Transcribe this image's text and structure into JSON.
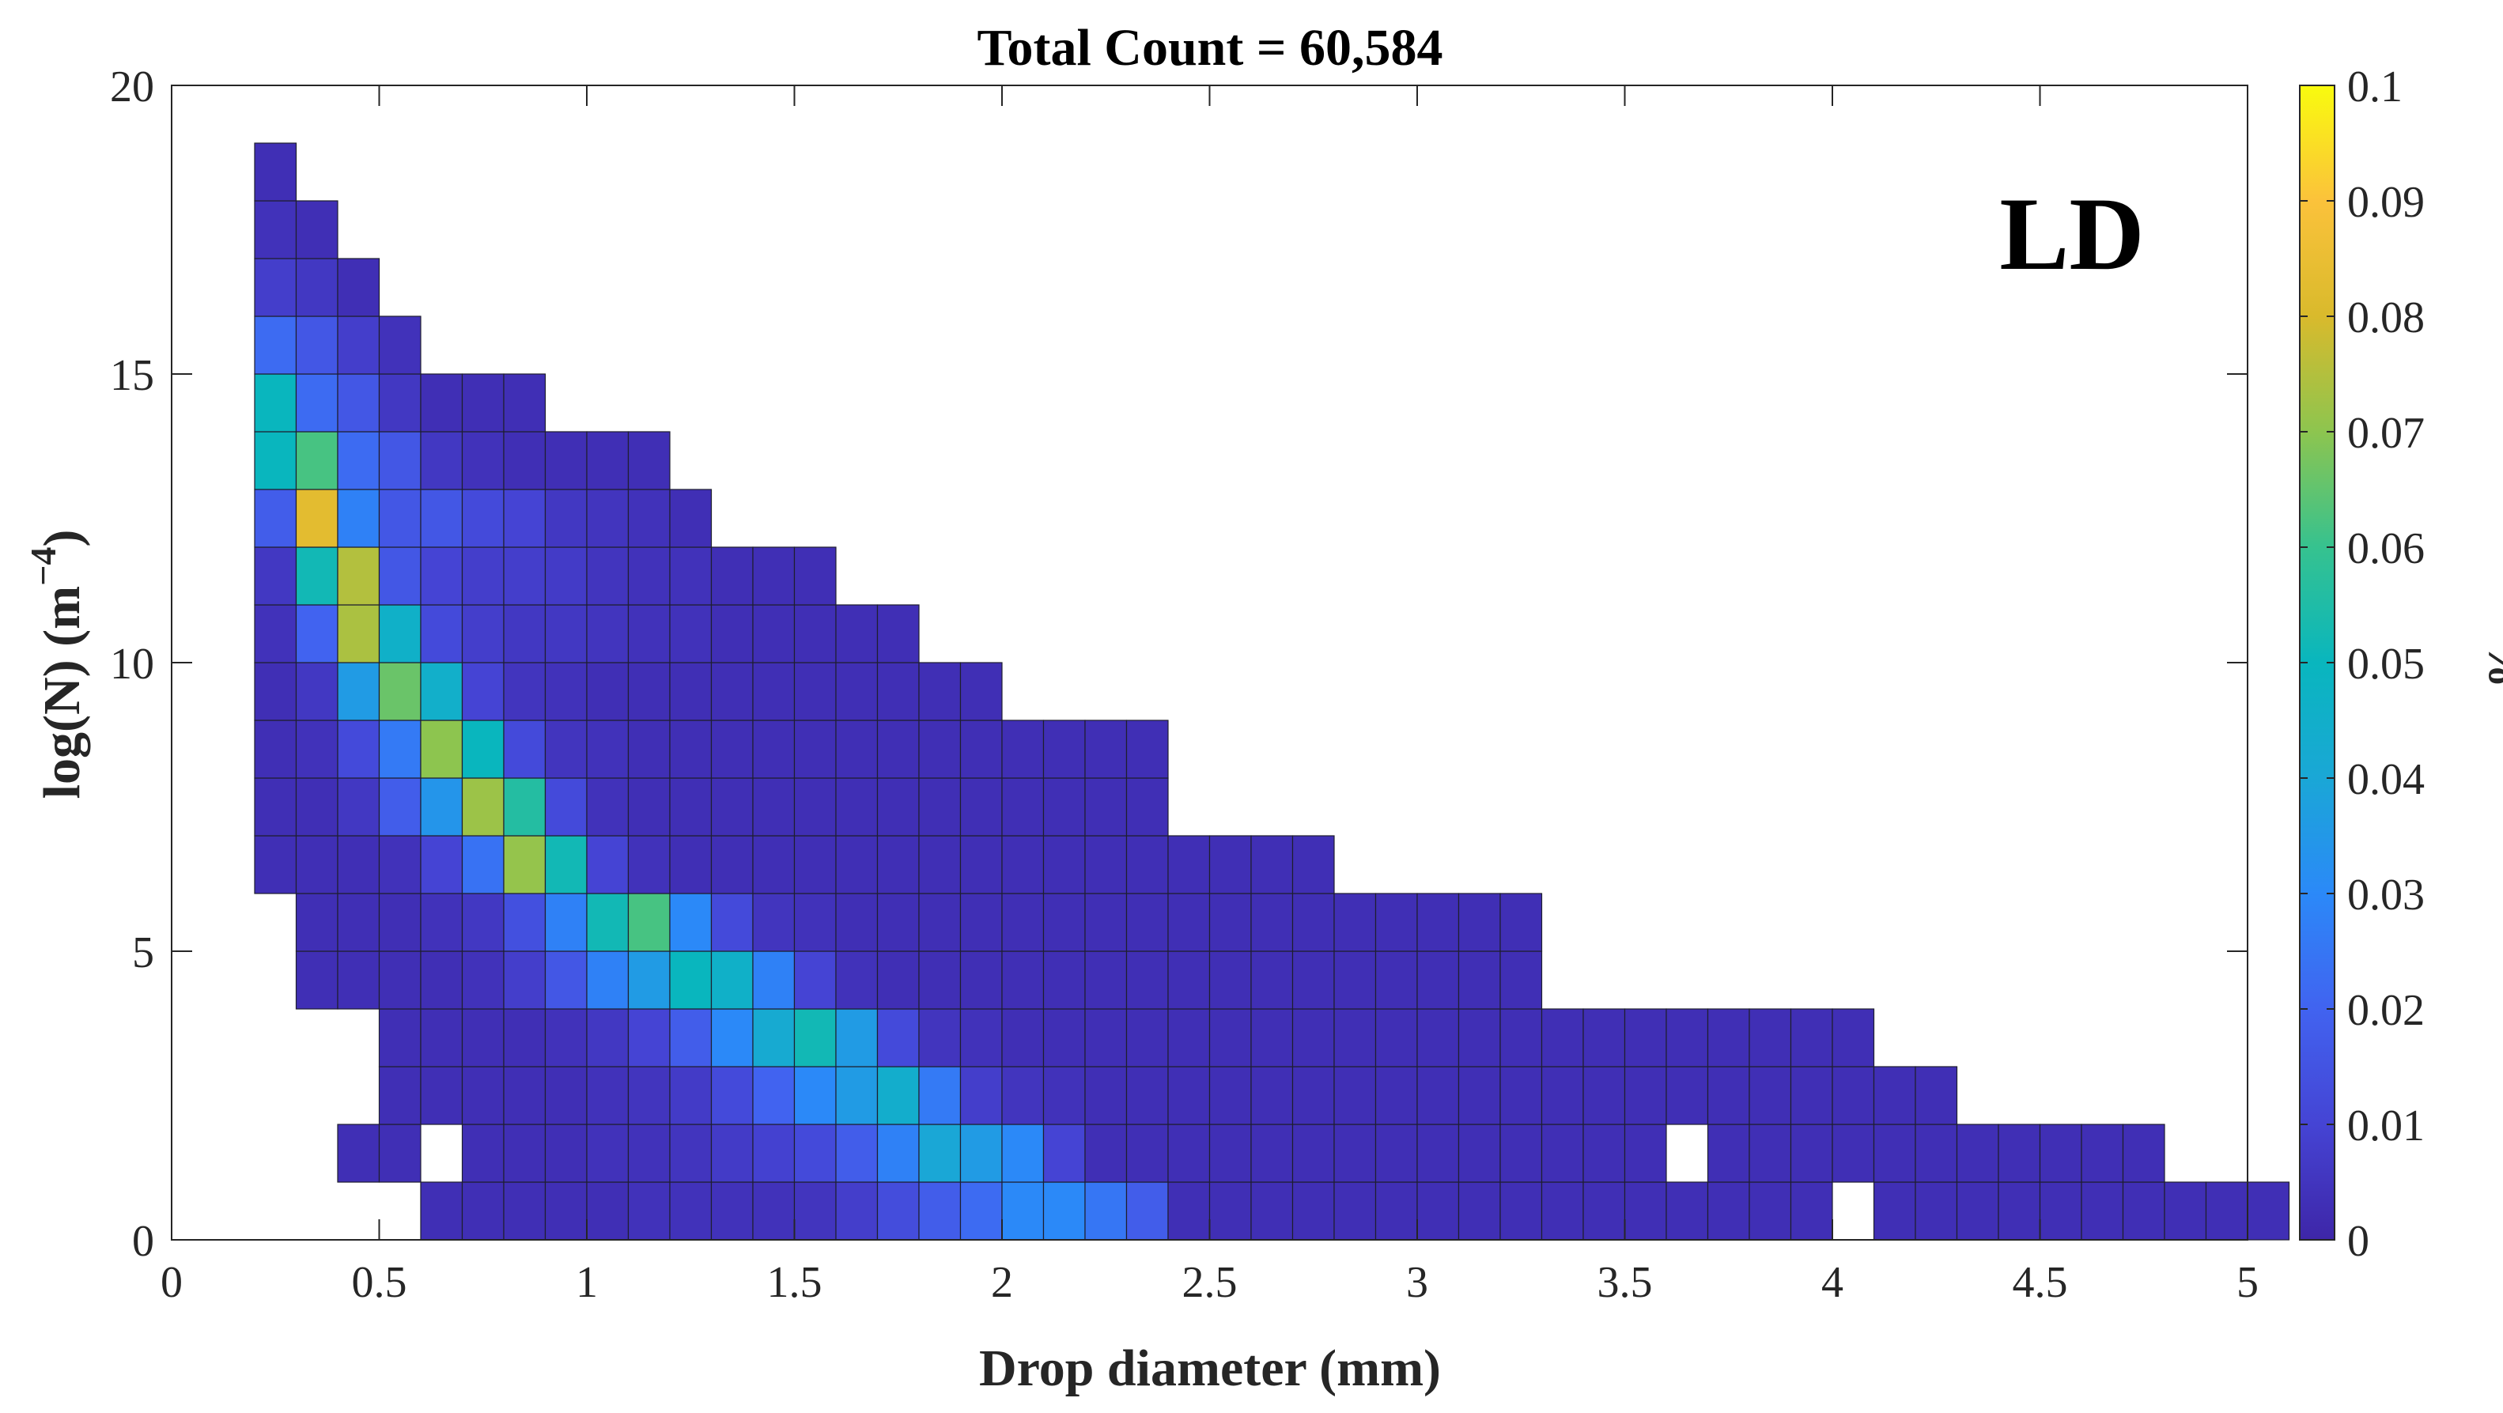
{
  "chart_data": {
    "type": "heatmap",
    "title": "Total Count = 60,584",
    "xlabel": "Drop diameter (mm)",
    "ylabel": "log(N) (m",
    "ylabel_exponent": "−4",
    "ylabel_close": ")",
    "annotation": "LD",
    "xlim": [
      0,
      5
    ],
    "ylim": [
      0,
      20
    ],
    "x_ticks": [
      0,
      0.5,
      1,
      1.5,
      2,
      2.5,
      3,
      3.5,
      4,
      4.5,
      5
    ],
    "y_ticks": [
      0,
      5,
      10,
      15,
      20
    ],
    "grid": false,
    "colorbar": {
      "label": "%",
      "range": [
        0,
        0.1
      ],
      "ticks": [
        0,
        0.01,
        0.02,
        0.03,
        0.04,
        0.05,
        0.06,
        0.07,
        0.08,
        0.09,
        0.1
      ],
      "colormap": "parula"
    },
    "x_bin_edges": [
      0.2,
      0.3,
      0.4,
      0.5,
      0.6,
      0.7,
      0.8,
      0.9,
      1.0,
      1.1,
      1.2,
      1.3,
      1.4,
      1.5,
      1.6,
      1.7,
      1.8,
      1.9,
      2.0,
      2.1,
      2.2,
      2.3,
      2.4,
      2.5,
      2.6,
      2.7,
      2.8,
      2.9,
      3.0,
      3.1,
      3.2,
      3.3,
      3.4,
      3.5,
      3.6,
      3.7,
      3.8,
      3.9,
      4.0,
      4.1,
      4.2,
      4.3,
      4.4,
      4.5
    ],
    "y_bin_edges": [
      0,
      1,
      2,
      3,
      4,
      5,
      6,
      7,
      8,
      9,
      10,
      11,
      12,
      13,
      14,
      15,
      16,
      17,
      18,
      19
    ],
    "rows_bottom_to_top": [
      {
        "start": 0.6,
        "values": [
          0.003,
          0.003,
          0.003,
          0.003,
          0.003,
          0.004,
          0.004,
          0.004,
          0.004,
          0.005,
          0.008,
          0.013,
          0.018,
          0.022,
          0.03,
          0.03,
          0.025,
          0.018,
          0.003,
          0.003,
          0.003,
          0.003,
          0.003,
          0.003,
          0.003,
          0.003,
          0.003,
          0.003,
          0.003,
          0.003,
          0.003,
          0.003,
          0.003,
          0.003,
          null,
          0.003,
          0.003,
          0.003,
          0.003,
          0.003,
          0.003,
          0.003,
          0.003,
          0.003,
          0.003
        ]
      },
      {
        "start": 0.4,
        "values": [
          0.003,
          0.003,
          null,
          0.003,
          0.003,
          0.003,
          0.004,
          0.004,
          0.005,
          0.007,
          0.009,
          0.012,
          0.018,
          0.028,
          0.04,
          0.036,
          0.03,
          0.01,
          0.003,
          0.003,
          0.003,
          0.003,
          0.003,
          0.003,
          0.003,
          0.003,
          0.003,
          0.003,
          0.003,
          0.003,
          0.003,
          0.003,
          null,
          0.003,
          0.003,
          0.003,
          0.003,
          0.003,
          0.003,
          0.003,
          0.003,
          0.003,
          0.003,
          0.003
        ]
      },
      {
        "start": 0.5,
        "values": [
          0.003,
          0.003,
          0.003,
          0.003,
          0.003,
          0.004,
          0.005,
          0.007,
          0.012,
          0.02,
          0.03,
          0.036,
          0.044,
          0.026,
          0.008,
          0.005,
          0.004,
          0.003,
          0.003,
          0.003,
          0.003,
          0.003,
          0.003,
          0.003,
          0.003,
          0.003,
          0.003,
          0.003,
          0.003,
          0.003,
          0.003,
          0.003,
          0.003,
          0.003,
          0.003,
          0.003,
          0.003,
          0.003
        ]
      },
      {
        "start": 0.5,
        "values": [
          0.003,
          0.003,
          0.003,
          0.003,
          0.004,
          0.006,
          0.01,
          0.018,
          0.03,
          0.042,
          0.052,
          0.036,
          0.012,
          0.005,
          0.004,
          0.003,
          0.003,
          0.003,
          0.003,
          0.003,
          0.003,
          0.003,
          0.003,
          0.003,
          0.003,
          0.003,
          0.003,
          0.003,
          0.003,
          0.003,
          0.003,
          0.003,
          0.003,
          0.003,
          0.003,
          0.003
        ]
      },
      {
        "start": 0.3,
        "values": [
          0.003,
          0.003,
          0.003,
          0.003,
          0.004,
          0.008,
          0.016,
          0.028,
          0.036,
          0.05,
          0.046,
          0.028,
          0.01,
          0.004,
          0.003,
          0.003,
          0.003,
          0.003,
          0.003,
          0.003,
          0.003,
          0.003,
          0.003,
          0.003,
          0.003,
          0.003,
          0.003,
          0.003,
          0.003,
          0.003
        ]
      },
      {
        "start": 0.3,
        "values": [
          0.003,
          0.003,
          0.003,
          0.004,
          0.006,
          0.014,
          0.028,
          0.052,
          0.062,
          0.03,
          0.012,
          0.005,
          0.004,
          0.003,
          0.003,
          0.003,
          0.003,
          0.003,
          0.003,
          0.003,
          0.003,
          0.003,
          0.003,
          0.003,
          0.003,
          0.003,
          0.003,
          0.003,
          0.003,
          0.003
        ]
      },
      {
        "start": 0.2,
        "values": [
          0.003,
          0.003,
          0.003,
          0.004,
          0.01,
          0.024,
          0.071,
          0.052,
          0.01,
          0.004,
          0.003,
          0.003,
          0.003,
          0.003,
          0.003,
          0.003,
          0.003,
          0.003,
          0.003,
          0.003,
          0.003,
          0.003,
          0.003,
          0.003,
          0.003,
          0.003
        ]
      },
      {
        "start": 0.2,
        "values": [
          0.003,
          0.003,
          0.006,
          0.018,
          0.034,
          0.072,
          0.056,
          0.012,
          0.004,
          0.003,
          0.003,
          0.003,
          0.003,
          0.003,
          0.003,
          0.003,
          0.003,
          0.003,
          0.003,
          0.003,
          0.003,
          0.003
        ]
      },
      {
        "start": 0.2,
        "values": [
          0.003,
          0.004,
          0.012,
          0.026,
          0.07,
          0.05,
          0.012,
          0.005,
          0.004,
          0.003,
          0.003,
          0.003,
          0.003,
          0.003,
          0.003,
          0.003,
          0.003,
          0.003,
          0.003,
          0.003,
          0.003,
          0.003
        ]
      },
      {
        "start": 0.2,
        "values": [
          0.003,
          0.006,
          0.036,
          0.066,
          0.045,
          0.01,
          0.005,
          0.004,
          0.003,
          0.003,
          0.003,
          0.003,
          0.003,
          0.003,
          0.003,
          0.003,
          0.003,
          0.003
        ]
      },
      {
        "start": 0.2,
        "values": [
          0.004,
          0.02,
          0.074,
          0.046,
          0.012,
          0.008,
          0.006,
          0.006,
          0.005,
          0.004,
          0.004,
          0.003,
          0.003,
          0.003,
          0.003,
          0.003
        ]
      },
      {
        "start": 0.2,
        "values": [
          0.006,
          0.052,
          0.075,
          0.016,
          0.01,
          0.008,
          0.008,
          0.007,
          0.005,
          0.004,
          0.004,
          0.003,
          0.003,
          0.003
        ]
      },
      {
        "start": 0.2,
        "values": [
          0.018,
          0.083,
          0.028,
          0.016,
          0.016,
          0.012,
          0.01,
          0.006,
          0.005,
          0.004,
          0.003
        ]
      },
      {
        "start": 0.2,
        "values": [
          0.05,
          0.062,
          0.022,
          0.016,
          0.006,
          0.004,
          0.003,
          0.003,
          0.003,
          0.003
        ]
      },
      {
        "start": 0.2,
        "values": [
          0.05,
          0.022,
          0.016,
          0.006,
          0.003,
          0.003,
          0.003
        ]
      },
      {
        "start": 0.2,
        "values": [
          0.022,
          0.016,
          0.008,
          0.004
        ]
      },
      {
        "start": 0.2,
        "values": [
          0.008,
          0.006,
          0.003
        ]
      },
      {
        "start": 0.2,
        "values": [
          0.004,
          0.003
        ]
      },
      {
        "start": 0.2,
        "values": [
          0.003
        ]
      }
    ]
  }
}
